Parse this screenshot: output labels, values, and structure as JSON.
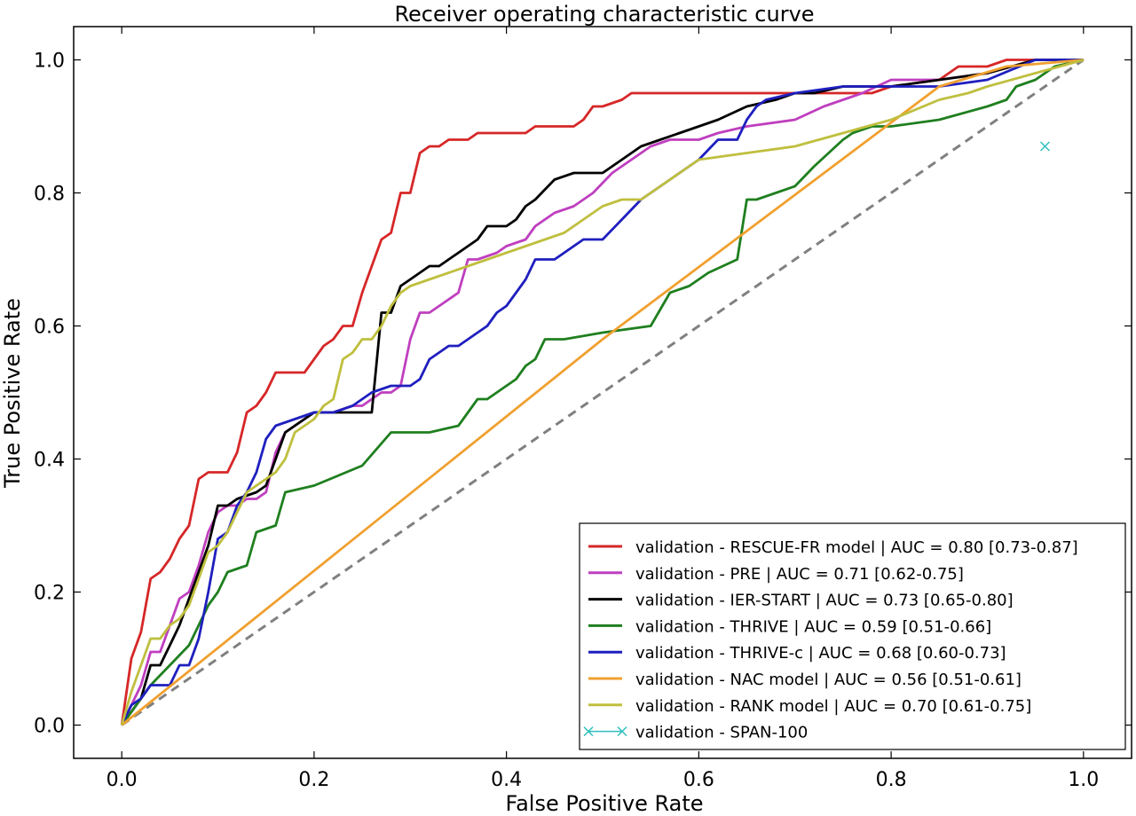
{
  "chart_data": {
    "type": "line",
    "title": "Receiver operating characteristic curve",
    "xlabel": "False Positive Rate",
    "ylabel": "True Positive Rate",
    "xlim": [
      -0.05,
      1.05
    ],
    "ylim": [
      -0.05,
      1.05
    ],
    "xticks": [
      "0.0",
      "0.2",
      "0.4",
      "0.6",
      "0.8",
      "1.0"
    ],
    "yticks": [
      "0.0",
      "0.2",
      "0.4",
      "0.6",
      "0.8",
      "1.0"
    ],
    "grid": false,
    "legend_position": "bottom-right",
    "chance_line": {
      "color": "#808080",
      "dash": true,
      "x": [
        0,
        1
      ],
      "y": [
        0,
        1
      ]
    },
    "series": [
      {
        "name": "validation - RESCUE-FR model | AUC = 0.80 [0.73-0.87]",
        "color": "#d62728",
        "x": [
          0,
          0.01,
          0.02,
          0.03,
          0.04,
          0.05,
          0.06,
          0.07,
          0.08,
          0.09,
          0.11,
          0.12,
          0.13,
          0.14,
          0.15,
          0.16,
          0.17,
          0.19,
          0.2,
          0.21,
          0.22,
          0.23,
          0.24,
          0.25,
          0.26,
          0.27,
          0.28,
          0.29,
          0.3,
          0.31,
          0.32,
          0.33,
          0.34,
          0.35,
          0.36,
          0.37,
          0.38,
          0.4,
          0.42,
          0.43,
          0.45,
          0.47,
          0.48,
          0.49,
          0.5,
          0.52,
          0.53,
          0.55,
          0.6,
          0.7,
          0.78,
          0.8,
          0.85,
          0.87,
          0.9,
          0.92,
          0.94,
          0.97,
          1.0
        ],
        "y": [
          0,
          0.1,
          0.14,
          0.22,
          0.23,
          0.25,
          0.28,
          0.3,
          0.37,
          0.38,
          0.38,
          0.41,
          0.47,
          0.48,
          0.5,
          0.53,
          0.53,
          0.53,
          0.55,
          0.57,
          0.58,
          0.6,
          0.6,
          0.65,
          0.69,
          0.73,
          0.74,
          0.8,
          0.8,
          0.86,
          0.87,
          0.87,
          0.88,
          0.88,
          0.88,
          0.89,
          0.89,
          0.89,
          0.89,
          0.9,
          0.9,
          0.9,
          0.91,
          0.93,
          0.93,
          0.94,
          0.95,
          0.95,
          0.95,
          0.95,
          0.95,
          0.96,
          0.97,
          0.99,
          0.99,
          1.0,
          1.0,
          1.0,
          1.0
        ]
      },
      {
        "name": "validation - PRE | AUC = 0.71 [0.62-0.75]",
        "color": "#bf3fbf",
        "x": [
          0,
          0.02,
          0.03,
          0.04,
          0.05,
          0.06,
          0.07,
          0.08,
          0.09,
          0.1,
          0.11,
          0.12,
          0.13,
          0.14,
          0.15,
          0.16,
          0.17,
          0.18,
          0.19,
          0.2,
          0.22,
          0.24,
          0.25,
          0.26,
          0.27,
          0.28,
          0.29,
          0.3,
          0.31,
          0.32,
          0.33,
          0.35,
          0.36,
          0.37,
          0.39,
          0.4,
          0.42,
          0.43,
          0.45,
          0.47,
          0.49,
          0.51,
          0.53,
          0.55,
          0.57,
          0.6,
          0.62,
          0.65,
          0.7,
          0.73,
          0.75,
          0.77,
          0.8,
          0.85,
          0.9,
          0.95,
          1.0
        ],
        "y": [
          0,
          0.06,
          0.11,
          0.11,
          0.15,
          0.19,
          0.2,
          0.24,
          0.29,
          0.32,
          0.33,
          0.33,
          0.34,
          0.34,
          0.35,
          0.41,
          0.44,
          0.45,
          0.46,
          0.47,
          0.47,
          0.48,
          0.48,
          0.49,
          0.5,
          0.5,
          0.51,
          0.58,
          0.62,
          0.62,
          0.63,
          0.65,
          0.7,
          0.7,
          0.71,
          0.72,
          0.73,
          0.75,
          0.77,
          0.78,
          0.8,
          0.83,
          0.85,
          0.87,
          0.88,
          0.88,
          0.89,
          0.9,
          0.91,
          0.93,
          0.94,
          0.95,
          0.97,
          0.97,
          0.98,
          1.0,
          1.0
        ]
      },
      {
        "name": "validation - IER-START | AUC = 0.73 [0.65-0.80]",
        "color": "#000000",
        "x": [
          0,
          0.02,
          0.03,
          0.04,
          0.05,
          0.06,
          0.07,
          0.08,
          0.09,
          0.1,
          0.11,
          0.12,
          0.14,
          0.15,
          0.16,
          0.17,
          0.18,
          0.19,
          0.2,
          0.22,
          0.24,
          0.26,
          0.27,
          0.28,
          0.29,
          0.3,
          0.31,
          0.32,
          0.33,
          0.34,
          0.35,
          0.36,
          0.37,
          0.38,
          0.4,
          0.41,
          0.42,
          0.43,
          0.45,
          0.47,
          0.49,
          0.5,
          0.52,
          0.54,
          0.56,
          0.58,
          0.6,
          0.62,
          0.65,
          0.68,
          0.7,
          0.72,
          0.75,
          0.8,
          0.85,
          0.9,
          0.95,
          1.0
        ],
        "y": [
          0,
          0.04,
          0.09,
          0.09,
          0.12,
          0.15,
          0.19,
          0.23,
          0.27,
          0.33,
          0.33,
          0.34,
          0.35,
          0.36,
          0.4,
          0.44,
          0.45,
          0.46,
          0.47,
          0.47,
          0.47,
          0.47,
          0.62,
          0.62,
          0.66,
          0.67,
          0.68,
          0.69,
          0.69,
          0.7,
          0.71,
          0.72,
          0.73,
          0.75,
          0.75,
          0.76,
          0.78,
          0.79,
          0.82,
          0.83,
          0.83,
          0.83,
          0.85,
          0.87,
          0.88,
          0.89,
          0.9,
          0.91,
          0.93,
          0.94,
          0.95,
          0.95,
          0.96,
          0.96,
          0.97,
          0.98,
          1.0,
          1.0
        ]
      },
      {
        "name": "validation - THRIVE | AUC = 0.59 [0.51-0.66]",
        "color": "#1f7f1f",
        "x": [
          0,
          0.03,
          0.05,
          0.07,
          0.09,
          0.1,
          0.11,
          0.13,
          0.14,
          0.16,
          0.17,
          0.2,
          0.25,
          0.28,
          0.3,
          0.32,
          0.35,
          0.37,
          0.38,
          0.4,
          0.41,
          0.42,
          0.43,
          0.44,
          0.46,
          0.5,
          0.55,
          0.57,
          0.59,
          0.61,
          0.64,
          0.65,
          0.66,
          0.7,
          0.72,
          0.75,
          0.76,
          0.78,
          0.8,
          0.85,
          0.9,
          0.92,
          0.93,
          0.95,
          0.97,
          1.0
        ],
        "y": [
          0,
          0.06,
          0.09,
          0.12,
          0.18,
          0.2,
          0.23,
          0.24,
          0.29,
          0.3,
          0.35,
          0.36,
          0.39,
          0.44,
          0.44,
          0.44,
          0.45,
          0.49,
          0.49,
          0.51,
          0.52,
          0.54,
          0.55,
          0.58,
          0.58,
          0.59,
          0.6,
          0.65,
          0.66,
          0.68,
          0.7,
          0.79,
          0.79,
          0.81,
          0.84,
          0.88,
          0.89,
          0.9,
          0.9,
          0.91,
          0.93,
          0.94,
          0.96,
          0.97,
          0.99,
          1.0
        ]
      },
      {
        "name": "validation - THRIVE-c | AUC = 0.68 [0.60-0.73]",
        "color": "#1f1fbf",
        "x": [
          0,
          0.01,
          0.02,
          0.03,
          0.04,
          0.05,
          0.06,
          0.07,
          0.08,
          0.09,
          0.1,
          0.11,
          0.12,
          0.13,
          0.14,
          0.15,
          0.16,
          0.18,
          0.2,
          0.22,
          0.24,
          0.26,
          0.28,
          0.3,
          0.31,
          0.32,
          0.33,
          0.34,
          0.35,
          0.36,
          0.37,
          0.38,
          0.39,
          0.4,
          0.41,
          0.42,
          0.43,
          0.45,
          0.46,
          0.47,
          0.48,
          0.5,
          0.52,
          0.54,
          0.55,
          0.57,
          0.58,
          0.6,
          0.62,
          0.64,
          0.65,
          0.66,
          0.67,
          0.7,
          0.75,
          0.8,
          0.85,
          0.9,
          0.95,
          1.0
        ],
        "y": [
          0,
          0.03,
          0.04,
          0.06,
          0.06,
          0.06,
          0.09,
          0.09,
          0.13,
          0.2,
          0.28,
          0.29,
          0.33,
          0.35,
          0.38,
          0.43,
          0.45,
          0.46,
          0.47,
          0.47,
          0.48,
          0.5,
          0.51,
          0.51,
          0.52,
          0.55,
          0.56,
          0.57,
          0.57,
          0.58,
          0.59,
          0.6,
          0.62,
          0.63,
          0.65,
          0.67,
          0.7,
          0.7,
          0.71,
          0.72,
          0.73,
          0.73,
          0.76,
          0.79,
          0.8,
          0.82,
          0.83,
          0.85,
          0.88,
          0.88,
          0.91,
          0.93,
          0.94,
          0.95,
          0.96,
          0.96,
          0.96,
          0.97,
          1.0,
          1.0
        ]
      },
      {
        "name": "validation - NAC model | AUC = 0.56 [0.51-0.61]",
        "color": "#f0a030",
        "x": [
          0,
          0.5,
          0.85,
          0.92,
          1.0
        ],
        "y": [
          0,
          0.58,
          0.96,
          0.99,
          1.0
        ]
      },
      {
        "name": "validation - RANK model | AUC = 0.70 [0.61-0.75]",
        "color": "#bfbf3f",
        "x": [
          0,
          0.01,
          0.02,
          0.03,
          0.04,
          0.05,
          0.06,
          0.07,
          0.08,
          0.09,
          0.1,
          0.11,
          0.12,
          0.13,
          0.14,
          0.15,
          0.16,
          0.17,
          0.18,
          0.19,
          0.2,
          0.21,
          0.22,
          0.23,
          0.24,
          0.25,
          0.26,
          0.27,
          0.28,
          0.29,
          0.3,
          0.32,
          0.34,
          0.36,
          0.38,
          0.4,
          0.42,
          0.44,
          0.46,
          0.48,
          0.5,
          0.52,
          0.54,
          0.56,
          0.58,
          0.6,
          0.65,
          0.7,
          0.75,
          0.8,
          0.85,
          0.88,
          0.9,
          0.95,
          1.0
        ],
        "y": [
          0,
          0.05,
          0.09,
          0.13,
          0.13,
          0.15,
          0.16,
          0.18,
          0.22,
          0.26,
          0.27,
          0.29,
          0.32,
          0.35,
          0.36,
          0.37,
          0.38,
          0.4,
          0.44,
          0.45,
          0.46,
          0.48,
          0.49,
          0.55,
          0.56,
          0.58,
          0.58,
          0.6,
          0.63,
          0.65,
          0.66,
          0.67,
          0.68,
          0.69,
          0.7,
          0.71,
          0.72,
          0.73,
          0.74,
          0.76,
          0.78,
          0.79,
          0.79,
          0.81,
          0.83,
          0.85,
          0.86,
          0.87,
          0.89,
          0.91,
          0.94,
          0.95,
          0.96,
          0.98,
          1.0
        ]
      },
      {
        "name": "validation - SPAN-100",
        "color": "#2fbfbf",
        "marker": "x",
        "x": [
          0.96
        ],
        "y": [
          0.87
        ]
      }
    ]
  }
}
